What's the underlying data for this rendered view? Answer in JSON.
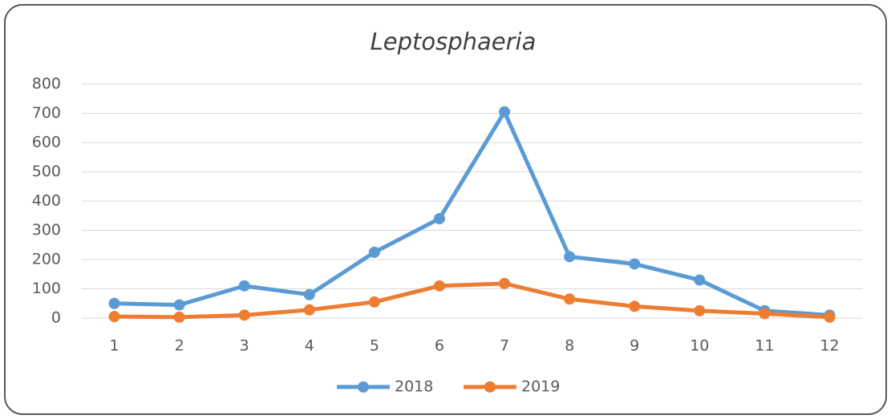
{
  "chart_data": {
    "type": "line",
    "title": "Leptosphaeria",
    "categories": [
      "1",
      "2",
      "3",
      "4",
      "5",
      "6",
      "7",
      "8",
      "9",
      "10",
      "11",
      "12"
    ],
    "series": [
      {
        "name": "2018",
        "color": "#5b9bd5",
        "values": [
          50,
          45,
          110,
          80,
          225,
          340,
          705,
          210,
          185,
          130,
          25,
          10
        ]
      },
      {
        "name": "2019",
        "color": "#ed7d31",
        "values": [
          5,
          3,
          10,
          28,
          55,
          110,
          118,
          65,
          40,
          25,
          15,
          3
        ]
      }
    ],
    "ylim": [
      0,
      800
    ],
    "yticks": [
      0,
      100,
      200,
      300,
      400,
      500,
      600,
      700,
      800
    ],
    "grid": true,
    "legend": "bottom"
  }
}
